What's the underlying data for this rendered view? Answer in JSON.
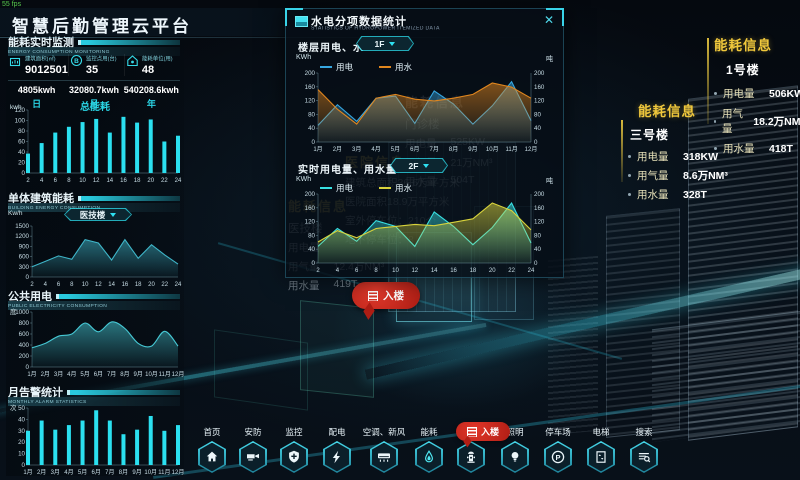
{
  "meta": {
    "fps": "55 fps",
    "title": "智慧后勤管理云平台"
  },
  "sidebar": {
    "sections": {
      "monitor": {
        "title": "能耗实时监测",
        "subtitle": "ENERGY CONSUMPTION MONITORING"
      },
      "building": {
        "title": "单体建筑能耗",
        "subtitle": "BUILDING ENERGY CONSUMPTION",
        "dropdown": "医技楼"
      },
      "public": {
        "title": "公共用电",
        "subtitle": "PUBLIC ELECTRICITY CONSUMPTION"
      },
      "alarm": {
        "title": "月告警统计",
        "subtitle": "MONTHLY ALARM STATISTICS"
      }
    },
    "stats": [
      {
        "icon": "building-area-icon",
        "label": "建筑面积(㎡)",
        "value": "9012501"
      },
      {
        "icon": "monitor-point-icon",
        "label": "监控点用(台)",
        "value": "35"
      },
      {
        "icon": "energy-unit-icon",
        "label": "能耗单位(用)",
        "value": "48"
      }
    ],
    "periods": [
      {
        "value": "4805kwh",
        "label": "日"
      },
      {
        "value": "32080.7kwh",
        "label": "月"
      },
      {
        "value": "540208.6kwh",
        "label": "年"
      }
    ],
    "total_chart_title": "总能耗"
  },
  "chart_data": [
    {
      "name": "total-energy",
      "type": "bar",
      "title": "总能耗",
      "ylabel": "kwh",
      "ylim": [
        0,
        120
      ],
      "yticks": [
        0,
        20,
        40,
        60,
        80,
        100,
        120
      ],
      "categories": [
        "2",
        "4",
        "6",
        "8",
        "10",
        "12",
        "14",
        "16",
        "18",
        "20",
        "22",
        "24"
      ],
      "values": [
        37,
        57,
        77,
        88,
        97,
        103,
        77,
        107,
        96,
        102,
        60,
        71
      ],
      "color": "#2be0f0"
    },
    {
      "name": "building-energy",
      "type": "area",
      "ylabel": "Kw/h",
      "ylim": [
        0,
        1500
      ],
      "yticks": [
        0,
        300,
        600,
        900,
        1200,
        1500
      ],
      "categories": [
        "2",
        "4",
        "6",
        "8",
        "10",
        "12",
        "14",
        "16",
        "18",
        "20",
        "22",
        "24"
      ],
      "values": [
        300,
        460,
        620,
        520,
        1100,
        1000,
        500,
        1100,
        550,
        950,
        650,
        380
      ],
      "color": "#3fb6c9"
    },
    {
      "name": "public-electricity",
      "type": "area",
      "smooth": true,
      "ylabel": "度",
      "ylim": [
        0,
        1000
      ],
      "yticks": [
        0,
        200,
        400,
        600,
        800,
        1000
      ],
      "categories": [
        "1月",
        "2月",
        "3月",
        "4月",
        "5月",
        "6月",
        "7月",
        "8月",
        "9月",
        "10月",
        "11月",
        "12月"
      ],
      "values": [
        350,
        430,
        560,
        600,
        800,
        640,
        820,
        700,
        430,
        380,
        650,
        380
      ],
      "color": "#46c8d4"
    },
    {
      "name": "monthly-alarm",
      "type": "bar",
      "ylabel": "次",
      "ylim": [
        0,
        50
      ],
      "yticks": [
        0,
        10,
        20,
        30,
        40,
        50
      ],
      "categories": [
        "1月",
        "2月",
        "3月",
        "4月",
        "5月",
        "6月",
        "7月",
        "8月",
        "9月",
        "10月",
        "11月",
        "12月"
      ],
      "values": [
        30,
        39,
        31,
        35,
        39,
        48,
        39,
        27,
        31,
        43,
        30,
        35
      ],
      "color": "#2be0f0"
    },
    {
      "name": "floor-water-electricity",
      "type": "line",
      "dual": true,
      "ylabel_left": "KWh",
      "ylabel_right": "吨",
      "ylim": [
        0,
        200
      ],
      "yticks": [
        0,
        40,
        80,
        120,
        160,
        200
      ],
      "categories": [
        "1月",
        "2月",
        "3月",
        "4月",
        "5月",
        "6月",
        "7月",
        "8月",
        "9月",
        "10月",
        "11月",
        "12月"
      ],
      "series": [
        {
          "name": "用电",
          "color": "#36a6e0",
          "values": [
            48,
            108,
            60,
            127,
            133,
            54,
            148,
            110,
            52,
            105,
            175,
            62
          ]
        },
        {
          "name": "用水",
          "color": "#e0861e",
          "values": [
            152,
            95,
            52,
            127,
            138,
            124,
            119,
            127,
            138,
            171,
            159,
            127
          ]
        }
      ]
    },
    {
      "name": "realtime-usage",
      "type": "line",
      "dual": true,
      "ylabel_left": "KWh",
      "ylabel_right": "吨",
      "ylim": [
        0,
        200
      ],
      "yticks": [
        0,
        40,
        80,
        120,
        160,
        200
      ],
      "categories": [
        "2",
        "4",
        "6",
        "8",
        "10",
        "12",
        "14",
        "16",
        "18",
        "20",
        "22",
        "24"
      ],
      "series": [
        {
          "name": "用电",
          "color": "#38e0e2",
          "values": [
            48,
            100,
            63,
            123,
            106,
            48,
            148,
            106,
            53,
            103,
            174,
            58
          ]
        },
        {
          "name": "用水",
          "color": "#d8d33c",
          "values": [
            61,
            94,
            73,
            100,
            106,
            112,
            108,
            118,
            128,
            174,
            152,
            96
          ]
        }
      ]
    }
  ],
  "modal": {
    "title": "水电分项数据统计",
    "subtitle": "STATISTICS OF HYDROPOWER ITEMIZED DATA",
    "close": "✕",
    "axis_left": "KWh",
    "axis_right": "吨",
    "section1": {
      "label": "楼层用电、水",
      "dropdown": "1F"
    },
    "section2": {
      "label": "实时用电量、用水量",
      "dropdown": "2F"
    }
  },
  "background_labels": {
    "outpatient": {
      "title": "能耗信息",
      "name": "门诊楼",
      "rows": [
        {
          "label": "用电量",
          "value": "525KW"
        },
        {
          "label": "用气量",
          "value": "21万NM³"
        },
        {
          "label": "用水量",
          "value": "504T"
        }
      ]
    },
    "hospital": {
      "title": "医院信息",
      "rows": [
        "建筑总面积36.6万平方米",
        "医院面积18.9万平方米",
        "室外停车位：210个",
        "地下停车位：8"
      ]
    },
    "medtech": {
      "title": "能耗信息",
      "name": "医技楼",
      "rows": [
        {
          "label": "用电量",
          "value": ""
        },
        {
          "label": "用气量",
          "value": "12.4万NM³"
        },
        {
          "label": "用水量",
          "value": "419T"
        }
      ]
    }
  },
  "right_panels": [
    {
      "title": "能耗信息",
      "name": "1号楼",
      "rows": [
        {
          "label": "用电量",
          "value": "506KW"
        },
        {
          "label": "用气量",
          "value": "18.2万NM³"
        },
        {
          "label": "用水量",
          "value": "418T"
        }
      ]
    },
    {
      "title": "能耗信息",
      "name": "三号楼",
      "rows": [
        {
          "label": "用电量",
          "value": "318KW"
        },
        {
          "label": "用气量",
          "value": "8.6万NM³"
        },
        {
          "label": "用水量",
          "value": "328T"
        }
      ]
    }
  ],
  "nav": {
    "items": [
      {
        "label": "首页",
        "icon": "home-icon"
      },
      {
        "label": "安防",
        "icon": "camera-icon"
      },
      {
        "label": "监控",
        "icon": "shield-icon"
      },
      {
        "label": "配电",
        "icon": "lightning-icon"
      },
      {
        "label": "空调、新风",
        "icon": "ac-icon"
      },
      {
        "label": "能耗",
        "icon": "droplet-icon"
      },
      {
        "label": "消防",
        "icon": "hydrant-icon"
      },
      {
        "label": "照明",
        "icon": "bulb-icon"
      },
      {
        "label": "停车场",
        "icon": "parking-icon"
      },
      {
        "label": "电梯",
        "icon": "elevator-icon"
      },
      {
        "label": "搜索",
        "icon": "search-icon"
      }
    ],
    "fire_tooltip": "入楼"
  },
  "scene": {
    "enter_label": "入楼"
  },
  "colors": {
    "accent": "#2ee0f0",
    "yellow": "#f0c83c",
    "red": "#d5261f"
  }
}
